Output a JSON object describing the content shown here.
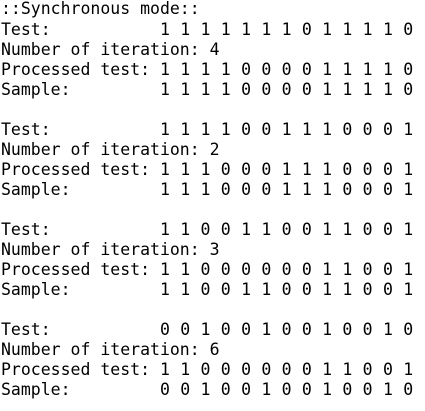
{
  "console": {
    "title": "::Synchronous mode::",
    "blocks": [
      {
        "test_label": "Test:",
        "test_bits": "1 1 1 1 1 1 1 0 1 1 1 1 0",
        "iteration_text": "Number of iteration: 4",
        "processed_label": "Processed test:",
        "processed_bits": "1 1 1 1 0 0 0 0 1 1 1 1 0",
        "sample_label": "Sample:",
        "sample_bits": "1 1 1 1 0 0 0 0 1 1 1 1 0"
      },
      {
        "test_label": "Test:",
        "test_bits": "1 1 1 1 0 0 1 1 1 0 0 0 1",
        "iteration_text": "Number of iteration: 2",
        "processed_label": "Processed test:",
        "processed_bits": "1 1 1 0 0 0 1 1 1 0 0 0 1",
        "sample_label": "Sample:",
        "sample_bits": "1 1 1 0 0 0 1 1 1 0 0 0 1"
      },
      {
        "test_label": "Test:",
        "test_bits": "1 1 0 0 1 1 0 0 1 1 0 0 1",
        "iteration_text": "Number of iteration: 3",
        "processed_label": "Processed test:",
        "processed_bits": "1 1 0 0 0 0 0 0 1 1 0 0 1",
        "sample_label": "Sample:",
        "sample_bits": "1 1 0 0 1 1 0 0 1 1 0 0 1"
      },
      {
        "test_label": "Test:",
        "test_bits": "0 0 1 0 0 1 0 0 1 0 0 1 0",
        "iteration_text": "Number of iteration: 6",
        "processed_label": "Processed test:",
        "processed_bits": "1 1 0 0 0 0 0 0 1 1 0 0 1",
        "sample_label": "Sample:",
        "sample_bits": "0 0 1 0 0 1 0 0 1 0 0 1 0"
      }
    ]
  }
}
